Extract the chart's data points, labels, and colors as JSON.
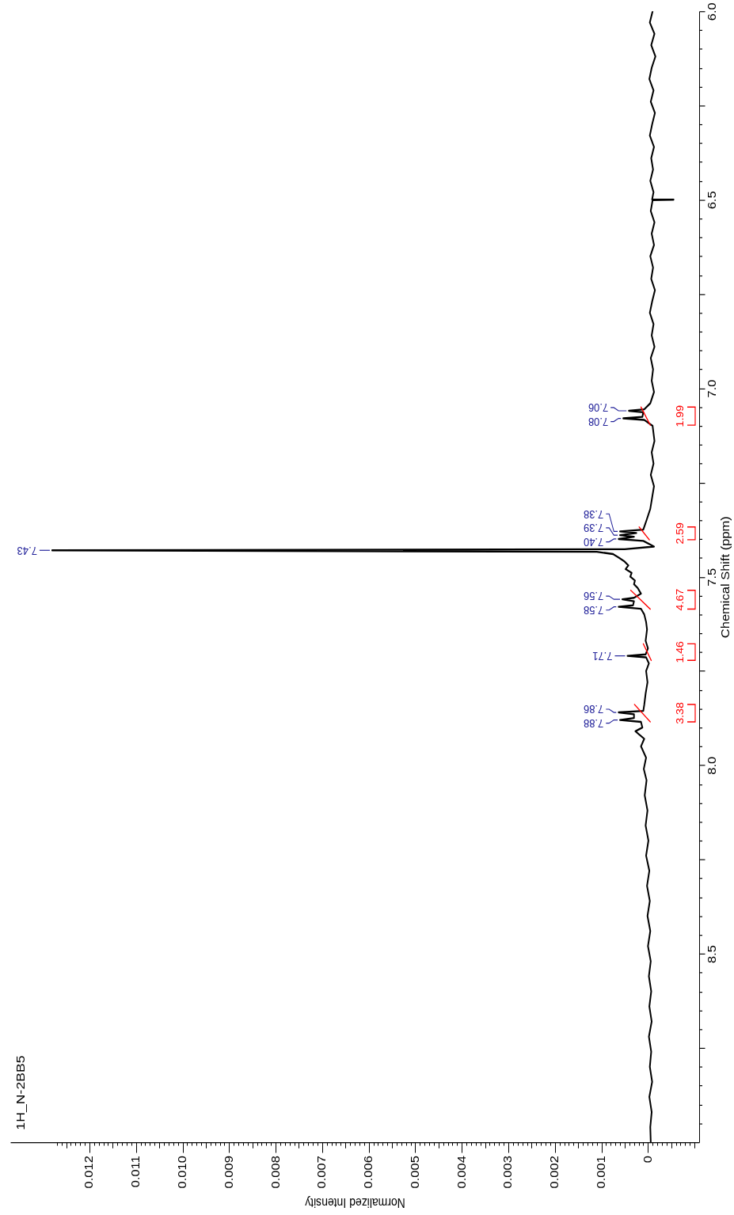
{
  "chart_data": {
    "type": "line",
    "title": "1H_N-2BB5",
    "xlabel": "Normalized Intensity",
    "ylabel": "Chemical Shift (ppm)",
    "xlim": [
      0.0137,
      -0.0011
    ],
    "xticks": [
      {
        "value": -0.001,
        "label": null
      },
      {
        "value": -0.0009,
        "label": null
      },
      {
        "value": -0.0008,
        "label": null
      },
      {
        "value": -0.0007,
        "label": null
      },
      {
        "value": -0.0006,
        "label": null
      },
      {
        "value": -0.0005,
        "label": null
      },
      {
        "value": -0.0004,
        "label": null
      },
      {
        "value": -0.0003,
        "label": null
      },
      {
        "value": -0.0002,
        "label": null
      },
      {
        "value": -0.0001,
        "label": null
      },
      {
        "value": 0,
        "label": "0"
      },
      {
        "value": 0.0001,
        "label": null
      },
      {
        "value": 0.0002,
        "label": null
      },
      {
        "value": 0.0003,
        "label": null
      },
      {
        "value": 0.0004,
        "label": null
      },
      {
        "value": 0.0005,
        "label": null
      },
      {
        "value": 0.0006,
        "label": null
      },
      {
        "value": 0.0007,
        "label": null
      },
      {
        "value": 0.0008,
        "label": null
      },
      {
        "value": 0.0009,
        "label": null
      },
      {
        "value": 0.001,
        "label": "0.001"
      },
      {
        "value": 0.0011,
        "label": null
      },
      {
        "value": 0.0012,
        "label": null
      },
      {
        "value": 0.0013,
        "label": null
      },
      {
        "value": 0.0014,
        "label": null
      },
      {
        "value": 0.0015,
        "label": null
      },
      {
        "value": 0.0016,
        "label": null
      },
      {
        "value": 0.0017,
        "label": null
      },
      {
        "value": 0.0018,
        "label": null
      },
      {
        "value": 0.0019,
        "label": null
      },
      {
        "value": 0.002,
        "label": "0.002"
      },
      {
        "value": 0.0021,
        "label": null
      },
      {
        "value": 0.0022,
        "label": null
      },
      {
        "value": 0.0023,
        "label": null
      },
      {
        "value": 0.0024,
        "label": null
      },
      {
        "value": 0.0025,
        "label": null
      },
      {
        "value": 0.0026,
        "label": null
      },
      {
        "value": 0.0027,
        "label": null
      },
      {
        "value": 0.0028,
        "label": null
      },
      {
        "value": 0.0029,
        "label": null
      },
      {
        "value": 0.003,
        "label": "0.003"
      },
      {
        "value": 0.0031,
        "label": null
      },
      {
        "value": 0.0032,
        "label": null
      },
      {
        "value": 0.0033,
        "label": null
      },
      {
        "value": 0.0034,
        "label": null
      },
      {
        "value": 0.0035,
        "label": null
      },
      {
        "value": 0.0036,
        "label": null
      },
      {
        "value": 0.0037,
        "label": null
      },
      {
        "value": 0.0038,
        "label": null
      },
      {
        "value": 0.0039,
        "label": null
      },
      {
        "value": 0.004,
        "label": "0.004"
      },
      {
        "value": 0.0041,
        "label": null
      },
      {
        "value": 0.0042,
        "label": null
      },
      {
        "value": 0.0043,
        "label": null
      },
      {
        "value": 0.0044,
        "label": null
      },
      {
        "value": 0.0045,
        "label": null
      },
      {
        "value": 0.0046,
        "label": null
      },
      {
        "value": 0.0047,
        "label": null
      },
      {
        "value": 0.0048,
        "label": null
      },
      {
        "value": 0.0049,
        "label": null
      },
      {
        "value": 0.005,
        "label": "0.005"
      },
      {
        "value": 0.0051,
        "label": null
      },
      {
        "value": 0.0052,
        "label": null
      },
      {
        "value": 0.0053,
        "label": null
      },
      {
        "value": 0.0054,
        "label": null
      },
      {
        "value": 0.0055,
        "label": null
      },
      {
        "value": 0.0056,
        "label": null
      },
      {
        "value": 0.0057,
        "label": null
      },
      {
        "value": 0.0058,
        "label": null
      },
      {
        "value": 0.0059,
        "label": null
      },
      {
        "value": 0.006,
        "label": "0.006"
      },
      {
        "value": 0.0061,
        "label": null
      },
      {
        "value": 0.0062,
        "label": null
      },
      {
        "value": 0.0063,
        "label": null
      },
      {
        "value": 0.0064,
        "label": null
      },
      {
        "value": 0.0065,
        "label": null
      },
      {
        "value": 0.0066,
        "label": null
      },
      {
        "value": 0.0067,
        "label": null
      },
      {
        "value": 0.0068,
        "label": null
      },
      {
        "value": 0.0069,
        "label": null
      },
      {
        "value": 0.007,
        "label": "0.007"
      },
      {
        "value": 0.0071,
        "label": null
      },
      {
        "value": 0.0072,
        "label": null
      },
      {
        "value": 0.0073,
        "label": null
      },
      {
        "value": 0.0074,
        "label": null
      },
      {
        "value": 0.0075,
        "label": null
      },
      {
        "value": 0.0076,
        "label": null
      },
      {
        "value": 0.0077,
        "label": null
      },
      {
        "value": 0.0078,
        "label": null
      },
      {
        "value": 0.0079,
        "label": null
      },
      {
        "value": 0.008,
        "label": "0.008"
      },
      {
        "value": 0.0081,
        "label": null
      },
      {
        "value": 0.0082,
        "label": null
      },
      {
        "value": 0.0083,
        "label": null
      },
      {
        "value": 0.0084,
        "label": null
      },
      {
        "value": 0.0085,
        "label": null
      },
      {
        "value": 0.0086,
        "label": null
      },
      {
        "value": 0.0087,
        "label": null
      },
      {
        "value": 0.0088,
        "label": null
      },
      {
        "value": 0.0089,
        "label": null
      },
      {
        "value": 0.009,
        "label": "0.009"
      },
      {
        "value": 0.0091,
        "label": null
      },
      {
        "value": 0.0092,
        "label": null
      },
      {
        "value": 0.0093,
        "label": null
      },
      {
        "value": 0.0094,
        "label": null
      },
      {
        "value": 0.0095,
        "label": null
      },
      {
        "value": 0.0096,
        "label": null
      },
      {
        "value": 0.0097,
        "label": null
      },
      {
        "value": 0.0098,
        "label": null
      },
      {
        "value": 0.0099,
        "label": null
      },
      {
        "value": 0.01,
        "label": "0.010"
      },
      {
        "value": 0.0101,
        "label": null
      },
      {
        "value": 0.0102,
        "label": null
      },
      {
        "value": 0.0103,
        "label": null
      },
      {
        "value": 0.0104,
        "label": null
      },
      {
        "value": 0.0105,
        "label": null
      },
      {
        "value": 0.0106,
        "label": null
      },
      {
        "value": 0.0107,
        "label": null
      },
      {
        "value": 0.0108,
        "label": null
      },
      {
        "value": 0.0109,
        "label": null
      },
      {
        "value": 0.011,
        "label": "0.011"
      },
      {
        "value": 0.0111,
        "label": null
      },
      {
        "value": 0.0112,
        "label": null
      },
      {
        "value": 0.0113,
        "label": null
      },
      {
        "value": 0.0114,
        "label": null
      },
      {
        "value": 0.0115,
        "label": null
      },
      {
        "value": 0.0116,
        "label": null
      },
      {
        "value": 0.0117,
        "label": null
      },
      {
        "value": 0.0118,
        "label": null
      },
      {
        "value": 0.0119,
        "label": null
      },
      {
        "value": 0.012,
        "label": "0.012"
      },
      {
        "value": 0.0121,
        "label": null
      },
      {
        "value": 0.0122,
        "label": null
      },
      {
        "value": 0.0123,
        "label": null
      },
      {
        "value": 0.0124,
        "label": null
      },
      {
        "value": 0.0125,
        "label": null
      },
      {
        "value": 0.0126,
        "label": null
      },
      {
        "value": 0.0127,
        "label": null
      }
    ],
    "ylim": [
      9,
      6
    ],
    "yticks": [
      {
        "value": 6,
        "label": "6.0"
      },
      {
        "value": 6.05,
        "label": null
      },
      {
        "value": 6.1,
        "label": null
      },
      {
        "value": 6.15,
        "label": null
      },
      {
        "value": 6.2,
        "label": null
      },
      {
        "value": 6.25,
        "label": null
      },
      {
        "value": 6.3,
        "label": null
      },
      {
        "value": 6.35,
        "label": null
      },
      {
        "value": 6.4,
        "label": null
      },
      {
        "value": 6.45,
        "label": null
      },
      {
        "value": 6.5,
        "label": "6.5"
      },
      {
        "value": 6.55,
        "label": null
      },
      {
        "value": 6.6,
        "label": null
      },
      {
        "value": 6.65,
        "label": null
      },
      {
        "value": 6.7,
        "label": null
      },
      {
        "value": 6.75,
        "label": null
      },
      {
        "value": 6.8,
        "label": null
      },
      {
        "value": 6.85,
        "label": null
      },
      {
        "value": 6.9,
        "label": null
      },
      {
        "value": 6.95,
        "label": null
      },
      {
        "value": 7,
        "label": "7.0"
      },
      {
        "value": 7.05,
        "label": null
      },
      {
        "value": 7.1,
        "label": null
      },
      {
        "value": 7.15,
        "label": null
      },
      {
        "value": 7.2,
        "label": null
      },
      {
        "value": 7.25,
        "label": null
      },
      {
        "value": 7.3,
        "label": null
      },
      {
        "value": 7.35,
        "label": null
      },
      {
        "value": 7.4,
        "label": null
      },
      {
        "value": 7.45,
        "label": null
      },
      {
        "value": 7.5,
        "label": "7.5"
      },
      {
        "value": 7.55,
        "label": null
      },
      {
        "value": 7.6,
        "label": null
      },
      {
        "value": 7.65,
        "label": null
      },
      {
        "value": 7.7,
        "label": null
      },
      {
        "value": 7.75,
        "label": null
      },
      {
        "value": 7.8,
        "label": null
      },
      {
        "value": 7.85,
        "label": null
      },
      {
        "value": 7.9,
        "label": null
      },
      {
        "value": 7.95,
        "label": null
      },
      {
        "value": 8,
        "label": "8.0"
      },
      {
        "value": 8.05,
        "label": null
      },
      {
        "value": 8.1,
        "label": null
      },
      {
        "value": 8.15,
        "label": null
      },
      {
        "value": 8.2,
        "label": null
      },
      {
        "value": 8.25,
        "label": null
      },
      {
        "value": 8.3,
        "label": null
      },
      {
        "value": 8.35,
        "label": null
      },
      {
        "value": 8.4,
        "label": null
      },
      {
        "value": 8.45,
        "label": null
      },
      {
        "value": 8.5,
        "label": "8.5"
      },
      {
        "value": 8.55,
        "label": null
      },
      {
        "value": 8.6,
        "label": null
      },
      {
        "value": 8.65,
        "label": null
      },
      {
        "value": 8.7,
        "label": null
      },
      {
        "value": 8.75,
        "label": null
      },
      {
        "value": 8.8,
        "label": null
      },
      {
        "value": 8.85,
        "label": null
      },
      {
        "value": 8.9,
        "label": null
      },
      {
        "value": 8.95,
        "label": null
      }
    ],
    "series": [
      {
        "color": "#000000",
        "x": [
          -0.0001,
          -4e-05,
          -0.00014,
          -7e-05,
          -0.00016,
          -8e-05,
          -3e-05,
          -0.00012,
          -6e-05,
          -0.00015,
          -9e-05,
          -4e-05,
          -0.00013,
          -7e-05,
          -0.00011,
          -5e-05,
          -0.00012,
          -9e-05,
          -0.00055,
          -0.0001,
          -6e-05,
          -0.00014,
          -8e-05,
          -0.00013,
          -5e-05,
          -0.00011,
          -7e-05,
          -0.00015,
          -9e-05,
          -4e-05,
          -0.00012,
          -8e-05,
          -0.00014,
          -6e-05,
          -0.00011,
          -8e-05,
          -0.00013,
          -5e-05,
          8e-05,
          0.00041,
          0.0001,
          0.00012,
          0.00053,
          8e-05,
          -0.0001,
          -0.00014,
          -8e-05,
          -0.00012,
          -6e-05,
          -0.00013,
          -9e-05,
          -5e-05,
          3e-05,
          0.0001,
          0.0006,
          0.00025,
          0.0006,
          0.0003,
          0.00063,
          0.0001,
          -0.00013,
          0.0005,
          0.0128,
          0.0011,
          0.00075,
          0.00062,
          0.0005,
          0.00042,
          0.00048,
          0.00035,
          0.00038,
          0.00028,
          0.0003,
          0.00022,
          0.00015,
          0.0003,
          0.00055,
          0.0003,
          0.00032,
          0.00063,
          0.00015,
          8e-05,
          4e-05,
          2e-05,
          5e-05,
          0,
          5e-05,
          0.00044,
          4e-05,
          -2e-05,
          4e-05,
          1e-05,
          5e-05,
          8e-05,
          0.0001,
          0.00063,
          0.0003,
          0.0003,
          0.0006,
          0.00015,
          0.00012,
          0.00027,
          8e-05,
          0.00015,
          4e-05,
          9e-05,
          3e-05,
          7e-05,
          1e-05,
          5e-05,
          -1e-05,
          4e-05,
          -3e-05,
          2e-05,
          -4e-05,
          1e-05,
          -5e-05,
          0,
          -6e-05,
          -2e-05,
          -7e-05,
          -3e-05,
          -8e-05,
          -2e-05,
          -7e-05,
          -4e-05,
          -9e-05,
          -3e-05,
          -8e-05,
          -5e-05,
          -6e-05
        ],
        "values": [
          6,
          6.03,
          6.06,
          6.09,
          6.12,
          6.15,
          6.18,
          6.21,
          6.24,
          6.27,
          6.3,
          6.33,
          6.36,
          6.39,
          6.42,
          6.45,
          6.48,
          6.499,
          6.5,
          6.501,
          6.53,
          6.56,
          6.59,
          6.62,
          6.65,
          6.68,
          6.71,
          6.74,
          6.77,
          6.8,
          6.83,
          6.86,
          6.89,
          6.92,
          6.95,
          6.98,
          7.01,
          7.04,
          7.056,
          7.06,
          7.064,
          7.076,
          7.08,
          7.084,
          7.1,
          7.14,
          7.17,
          7.2,
          7.23,
          7.26,
          7.29,
          7.32,
          7.35,
          7.375,
          7.38,
          7.384,
          7.39,
          7.394,
          7.4,
          7.405,
          7.42,
          7.427,
          7.43,
          7.434,
          7.44,
          7.45,
          7.46,
          7.47,
          7.48,
          7.49,
          7.5,
          7.51,
          7.52,
          7.53,
          7.545,
          7.556,
          7.56,
          7.565,
          7.576,
          7.58,
          7.585,
          7.6,
          7.62,
          7.64,
          7.67,
          7.69,
          7.706,
          7.71,
          7.714,
          7.73,
          7.75,
          7.78,
          7.81,
          7.84,
          7.856,
          7.86,
          7.865,
          7.875,
          7.88,
          7.885,
          7.9,
          7.91,
          7.93,
          7.95,
          7.98,
          8.01,
          8.04,
          8.08,
          8.12,
          8.16,
          8.2,
          8.24,
          8.28,
          8.32,
          8.36,
          8.4,
          8.44,
          8.48,
          8.52,
          8.56,
          8.6,
          8.64,
          8.68,
          8.72,
          8.76,
          8.8,
          8.84,
          8.88,
          8.92,
          8.96,
          9
        ]
      },
      {
        "color": "#ff0000",
        "x": [
          0.00015,
          -5e-05
        ],
        "values": [
          7.05,
          7.098
        ]
      },
      {
        "color": "#ff0000",
        "x": [
          0.00019,
          -3e-05
        ],
        "values": [
          7.368,
          7.402
        ]
      },
      {
        "color": "#ff0000",
        "x": [
          0.00037,
          -5e-05
        ],
        "values": [
          7.536,
          7.586
        ]
      },
      {
        "color": "#ff0000",
        "x": [
          0.0001,
          -7e-05
        ],
        "values": [
          7.678,
          7.722
        ]
      },
      {
        "color": "#ff0000",
        "x": [
          0.00029,
          -5e-05
        ],
        "values": [
          7.839,
          7.885
        ]
      }
    ],
    "annotations": [
      {
        "text": "7.06",
        "x": 0.00041,
        "y": 7.06
      },
      {
        "text": "7.08",
        "x": 0.00053,
        "y": 7.08
      },
      {
        "text": "7.38",
        "x": 0.0006,
        "y": 7.38
      },
      {
        "text": "7.39",
        "x": 0.0006,
        "y": 7.39
      },
      {
        "text": "7.40",
        "x": 0.00063,
        "y": 7.4
      },
      {
        "text": "7.43",
        "x": 0.0128,
        "y": 7.43
      },
      {
        "text": "7.56",
        "x": 0.00055,
        "y": 7.56
      },
      {
        "text": "7.58",
        "x": 0.00063,
        "y": 7.58
      },
      {
        "text": "7.71",
        "x": 0.00044,
        "y": 7.71
      },
      {
        "text": "7.86",
        "x": 0.00063,
        "y": 7.86
      },
      {
        "text": "7.88",
        "x": 0.0006,
        "y": 7.88
      },
      "1.99",
      "2.59",
      "4.67",
      "1.46",
      "3.38"
    ]
  }
}
